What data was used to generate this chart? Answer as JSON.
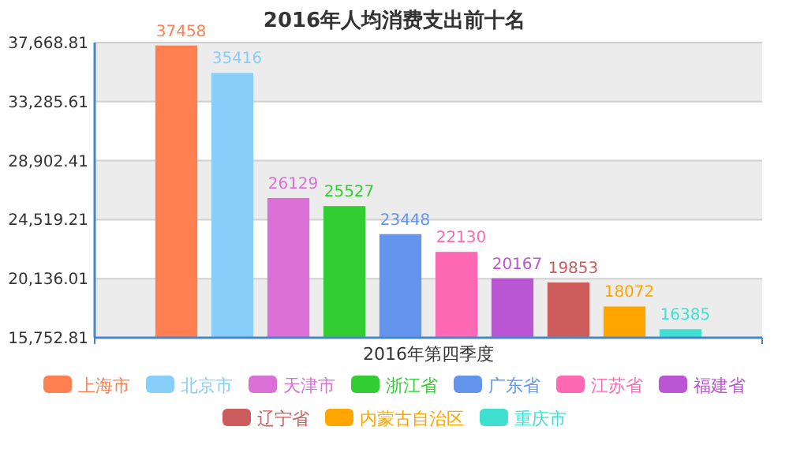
{
  "chart_data": {
    "type": "bar",
    "title": "2016年人均消费支出前十名",
    "categories": [
      "2016年第四季度"
    ],
    "series": [
      {
        "name": "上海市",
        "color": "#ff7f50",
        "values": [
          37458
        ]
      },
      {
        "name": "北京市",
        "color": "#87cefa",
        "values": [
          35416
        ]
      },
      {
        "name": "天津市",
        "color": "#da70d6",
        "values": [
          26129
        ]
      },
      {
        "name": "浙江省",
        "color": "#32cd32",
        "values": [
          25527
        ]
      },
      {
        "name": "广东省",
        "color": "#6495ed",
        "values": [
          23448
        ]
      },
      {
        "name": "江苏省",
        "color": "#ff69b4",
        "values": [
          22130
        ]
      },
      {
        "name": "福建省",
        "color": "#ba55d3",
        "values": [
          20167
        ]
      },
      {
        "name": "辽宁省",
        "color": "#cd5c5c",
        "values": [
          19853
        ]
      },
      {
        "name": "内蒙古自治区",
        "color": "#ffa500",
        "values": [
          18072
        ]
      },
      {
        "name": "重庆市",
        "color": "#40e0d0",
        "values": [
          16385
        ]
      }
    ],
    "ylim": [
      15752.81,
      37668.81
    ],
    "yticks": [
      {
        "value": 15752.81,
        "label": "15,752.81"
      },
      {
        "value": 20136.01,
        "label": "20,136.01"
      },
      {
        "value": 24519.21,
        "label": "24,519.21"
      },
      {
        "value": 28902.41,
        "label": "28,902.41"
      },
      {
        "value": 33285.61,
        "label": "33,285.61"
      },
      {
        "value": 37668.81,
        "label": "37,668.81"
      }
    ],
    "grid": "y",
    "legend": "bottom",
    "data_labels": true
  }
}
